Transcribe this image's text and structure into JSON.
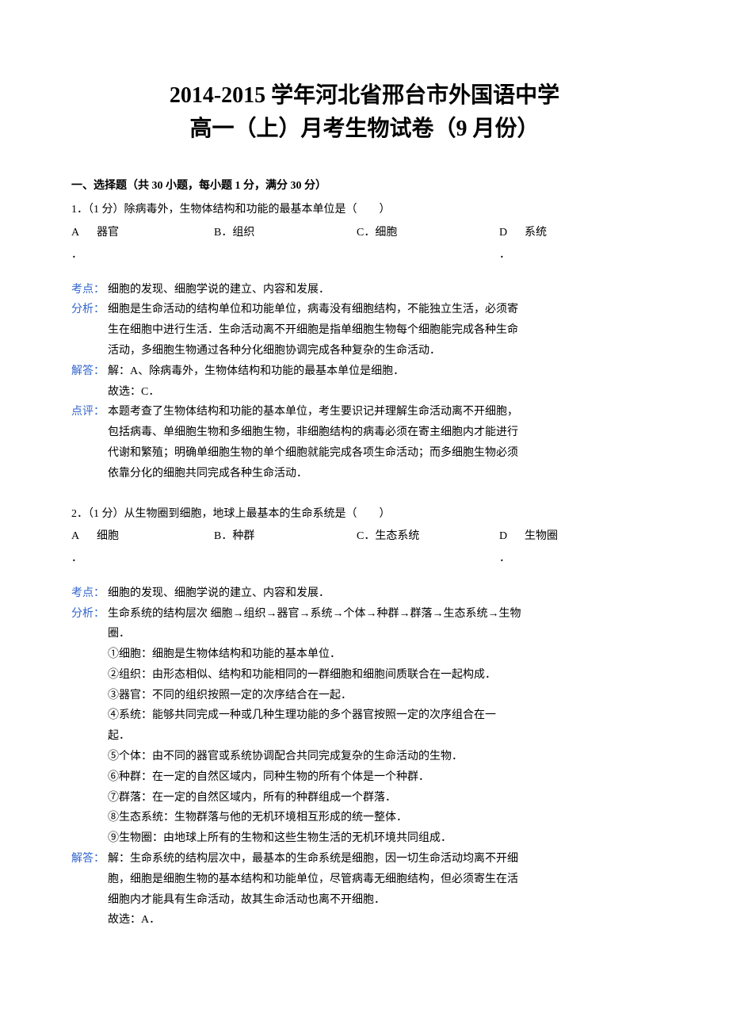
{
  "title_line1": "2014-2015 学年河北省邢台市外国语中学",
  "title_line2": "高一（上）月考生物试卷（9 月份）",
  "section_header": "一、选择题（共 30 小题，每小题 1 分，满分 30 分）",
  "q1": {
    "text": "1．（1 分）除病毒外，生物体结构和功能的最基本单位是（　　）",
    "a_label": "A",
    "a_text": "器官",
    "b": "B．组织",
    "c": "C．细胞",
    "d_label": "D",
    "d_text": "系统",
    "dot": "．",
    "kaodian_label": "考点：",
    "kaodian": "细胞的发现、细胞学说的建立、内容和发展．",
    "fenxi_label": "分析：",
    "fenxi_l1": "细胞是生命活动的结构单位和功能单位，病毒没有细胞结构，不能独立生活，必须寄",
    "fenxi_l2": "生在细胞中进行生活．生命活动离不开细胞是指单细胞生物每个细胞能完成各种生命",
    "fenxi_l3": "活动，多细胞生物通过各种分化细胞协调完成各种复杂的生命活动．",
    "jieda_label": "解答：",
    "jieda_l1": "解：A、除病毒外，生物体结构和功能的最基本单位是细胞．",
    "jieda_l2": "故选：C．",
    "dianping_label": "点评：",
    "dianping_l1": "本题考查了生物体结构和功能的基本单位，考生要识记并理解生命活动离不开细胞，",
    "dianping_l2": "包括病毒、单细胞生物和多细胞生物，非细胞结构的病毒必须在寄主细胞内才能进行",
    "dianping_l3": "代谢和繁殖；明确单细胞生物的单个细胞就能完成各项生命活动；而多细胞生物必须",
    "dianping_l4": "依靠分化的细胞共同完成各种生命活动．"
  },
  "q2": {
    "text": "2．（1 分）从生物圈到细胞，地球上最基本的生命系统是（　　）",
    "a_label": "A",
    "a_text": "细胞",
    "b": "B．种群",
    "c": "C．生态系统",
    "d_label": "D",
    "d_text": "生物圈",
    "dot": "．",
    "kaodian_label": "考点：",
    "kaodian": "细胞的发现、细胞学说的建立、内容和发展．",
    "fenxi_label": "分析：",
    "fenxi_l1": "生命系统的结构层次 细胞→组织→器官→系统→个体→种群→群落→生态系统→生物",
    "fenxi_l2": "圈．",
    "fenxi_l3": "①细胞：细胞是生物体结构和功能的基本单位．",
    "fenxi_l4": "②组织：由形态相似、结构和功能相同的一群细胞和细胞间质联合在一起构成．",
    "fenxi_l5": "③器官：不同的组织按照一定的次序结合在一起．",
    "fenxi_l6": "④系统：能够共同完成一种或几种生理功能的多个器官按照一定的次序组合在一",
    "fenxi_l7": "起．",
    "fenxi_l8": "⑤个体：由不同的器官或系统协调配合共同完成复杂的生命活动的生物．",
    "fenxi_l9": "⑥种群：在一定的自然区域内，同种生物的所有个体是一个种群．",
    "fenxi_l10": "⑦群落：在一定的自然区域内，所有的种群组成一个群落．",
    "fenxi_l11": "⑧生态系统：生物群落与他的无机环境相互形成的统一整体．",
    "fenxi_l12": "⑨生物圈：由地球上所有的生物和这些生物生活的无机环境共同组成．",
    "jieda_label": "解答：",
    "jieda_l1": "解：生命系统的结构层次中，最基本的生命系统是细胞，因一切生命活动均离不开细",
    "jieda_l2": "胞，细胞是细胞生物的基本结构和功能单位，尽管病毒无细胞结构，但必须寄生在活",
    "jieda_l3": "细胞内才能具有生命活动，故其生命活动也离不开细胞．",
    "jieda_l4": "故选：A．"
  },
  "colors": {
    "text": "#000000",
    "label_blue": "#3366cc",
    "background": "#ffffff"
  }
}
